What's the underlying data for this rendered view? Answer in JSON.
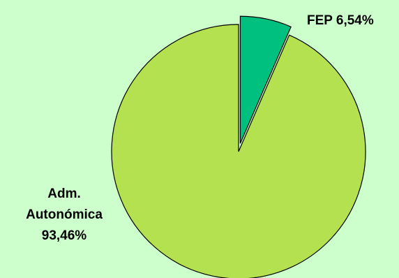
{
  "chart_data": {
    "type": "pie",
    "title": "",
    "slices": [
      {
        "name": "FEP",
        "value": 6.54,
        "label_lines": [
          "FEP 6,54%"
        ],
        "color": "#00c080",
        "exploded": true
      },
      {
        "name": "Adm. Autonómica",
        "value": 93.46,
        "label_lines": [
          "Adm.",
          "Autonómica",
          "93,46%"
        ],
        "color": "#b3e14f",
        "exploded": false
      }
    ],
    "start_angle_deg": 0,
    "direction": "clockwise",
    "legend": "none",
    "outline_color": "#000000",
    "background": "#ccffcc"
  }
}
